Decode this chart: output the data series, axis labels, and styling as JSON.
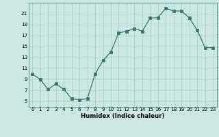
{
  "x": [
    0,
    1,
    2,
    3,
    4,
    5,
    6,
    7,
    8,
    9,
    10,
    11,
    12,
    13,
    14,
    15,
    16,
    17,
    18,
    19,
    20,
    21,
    22,
    23
  ],
  "y": [
    10,
    9,
    7.2,
    8.2,
    7.2,
    5.5,
    5.3,
    5.5,
    10,
    12.5,
    14,
    17.5,
    17.8,
    18.3,
    17.8,
    20.2,
    20.3,
    22,
    21.5,
    21.5,
    20.2,
    18,
    14.8,
    14.8
  ],
  "line_color": "#2d7a6e",
  "marker_color": "#2d7a6e",
  "bg_color": "#cce8e4",
  "grid_color": "#b0d0cc",
  "xlabel": "Humidex (Indice chaleur)",
  "xlim": [
    -0.5,
    23.5
  ],
  "ylim": [
    4,
    23
  ],
  "yticks": [
    5,
    7,
    9,
    11,
    13,
    15,
    17,
    19,
    21
  ],
  "xticks": [
    0,
    1,
    2,
    3,
    4,
    5,
    6,
    7,
    8,
    9,
    10,
    11,
    12,
    13,
    14,
    15,
    16,
    17,
    18,
    19,
    20,
    21,
    22,
    23
  ]
}
